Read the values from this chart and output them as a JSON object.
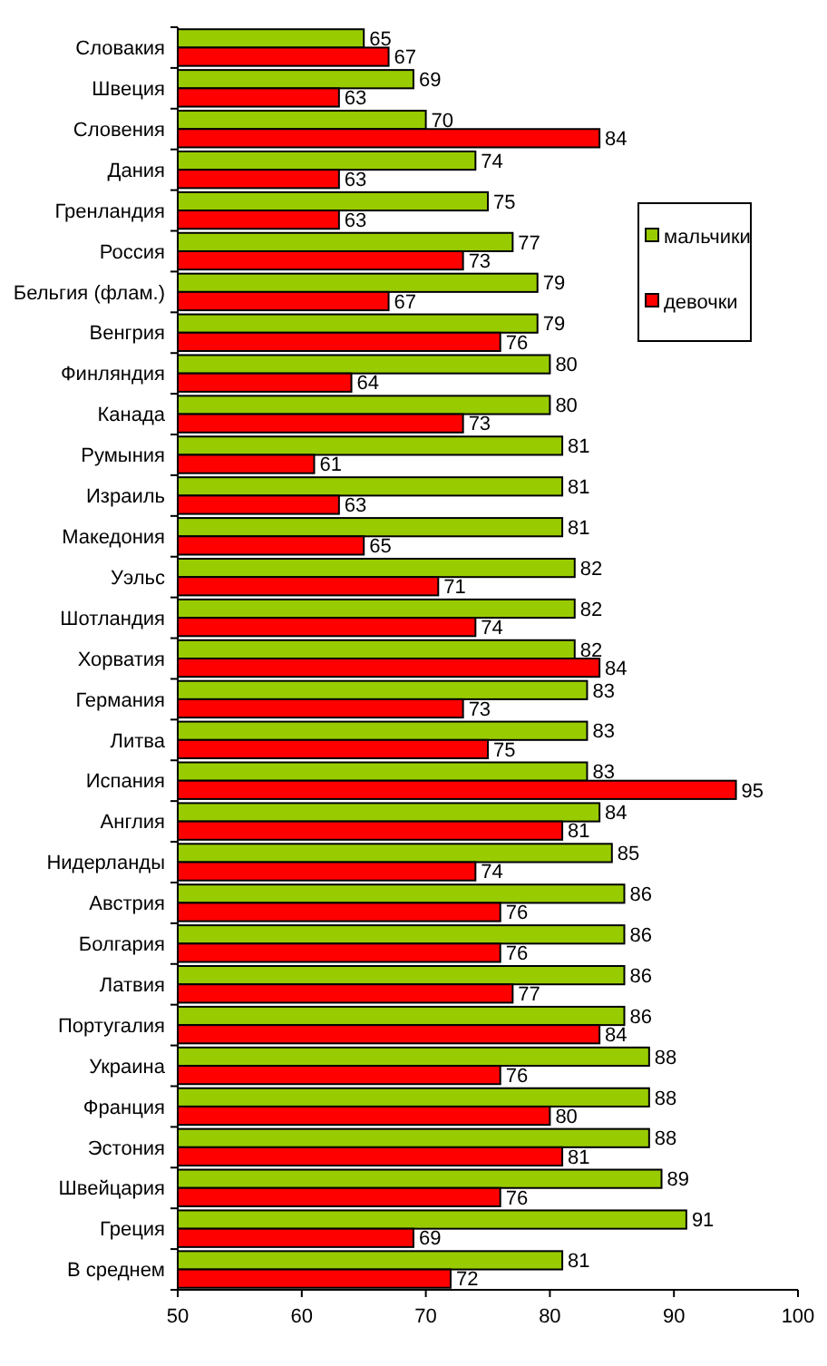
{
  "chart_data": {
    "type": "bar",
    "orientation": "horizontal",
    "categories": [
      "Словакия",
      "Швеция",
      "Словения",
      "Дания",
      "Гренландия",
      "Россия",
      "Бельгия (флам.)",
      "Венгрия",
      "Финляндия",
      "Канада",
      "Румыния",
      "Израиль",
      "Македония",
      "Уэльс",
      "Шотландия",
      "Хорватия",
      "Германия",
      "Литва",
      "Испания",
      "Англия",
      "Нидерланды",
      "Австрия",
      "Болгария",
      "Латвия",
      "Португалия",
      "Украина",
      "Франция",
      "Эстония",
      "Швейцария",
      "Греция",
      "В среднем"
    ],
    "series": [
      {
        "name": "мальчики",
        "color": "#99cc00",
        "values": [
          65,
          69,
          70,
          74,
          75,
          77,
          79,
          79,
          80,
          80,
          81,
          81,
          81,
          82,
          82,
          82,
          83,
          83,
          83,
          84,
          85,
          86,
          86,
          86,
          86,
          88,
          88,
          88,
          89,
          91,
          81
        ]
      },
      {
        "name": "девочки",
        "color": "#ff0000",
        "values": [
          67,
          63,
          84,
          63,
          63,
          73,
          67,
          76,
          64,
          73,
          61,
          63,
          65,
          71,
          74,
          84,
          73,
          75,
          95,
          81,
          74,
          76,
          76,
          77,
          84,
          76,
          80,
          81,
          76,
          69,
          72
        ]
      }
    ],
    "xlim": [
      50,
      100
    ],
    "xticks": [
      50,
      60,
      70,
      80,
      90,
      100
    ],
    "data_labels": true,
    "grid": false,
    "legend": "top right"
  }
}
